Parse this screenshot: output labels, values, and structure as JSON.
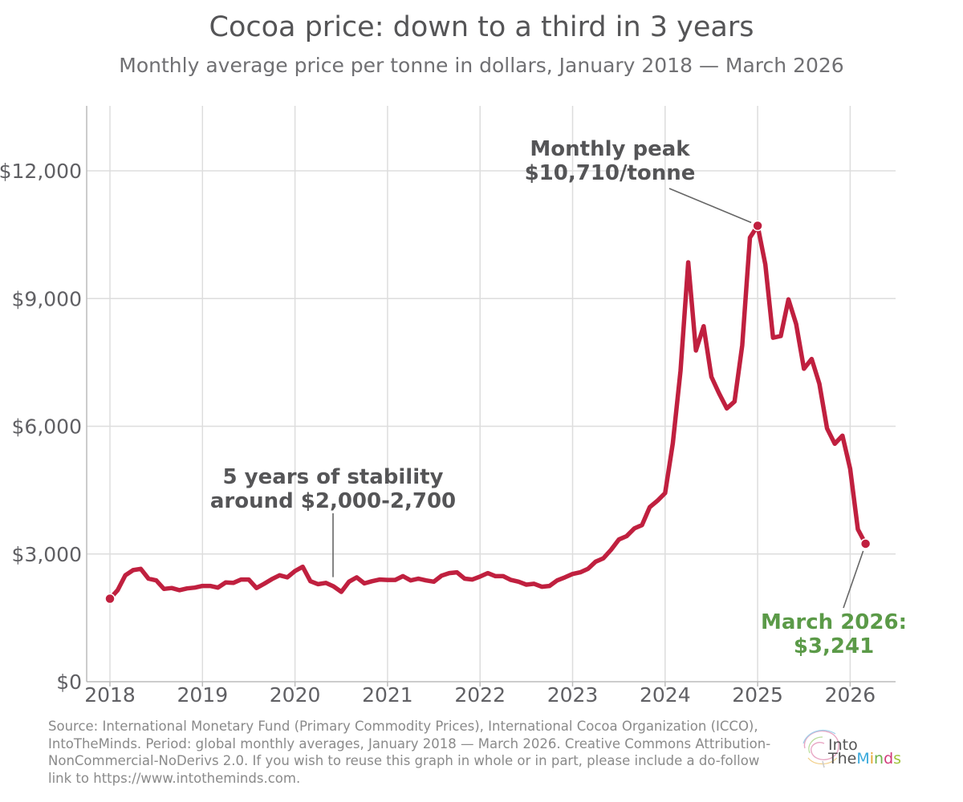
{
  "header": {
    "title": "Cocoa price: down to a third in 3 years",
    "subtitle": "Monthly average price per tonne in dollars, January 2018 — March 2026"
  },
  "chart_data": {
    "type": "line",
    "title": "Cocoa price: down to a third in 3 years",
    "subtitle": "Monthly average price per tonne in dollars, January 2018 — March 2026",
    "xlabel": "",
    "ylabel": "",
    "x_ticks": [
      "2018",
      "2019",
      "2020",
      "2021",
      "2022",
      "2023",
      "2024",
      "2025",
      "2026"
    ],
    "y_ticks": [
      0,
      3000,
      6000,
      9000,
      12000
    ],
    "y_tick_labels": [
      "$0",
      "$3,000",
      "$6,000",
      "$9,000",
      "$12,000"
    ],
    "xlim": [
      "2017-10",
      "2026-07"
    ],
    "ylim": [
      0,
      13500
    ],
    "grid": true,
    "line_color": "#c0203f",
    "series": [
      {
        "x_start": "2018-01",
        "frequency": "monthly",
        "values": [
          1950,
          2150,
          2500,
          2620,
          2650,
          2420,
          2380,
          2180,
          2200,
          2150,
          2190,
          2210,
          2250,
          2250,
          2210,
          2330,
          2320,
          2400,
          2400,
          2200,
          2300,
          2410,
          2500,
          2450,
          2600,
          2700,
          2360,
          2290,
          2320,
          2240,
          2110,
          2350,
          2450,
          2310,
          2360,
          2400,
          2390,
          2390,
          2480,
          2380,
          2420,
          2380,
          2350,
          2490,
          2550,
          2570,
          2420,
          2400,
          2470,
          2550,
          2480,
          2480,
          2390,
          2350,
          2280,
          2300,
          2230,
          2250,
          2380,
          2450,
          2530,
          2570,
          2650,
          2820,
          2900,
          3100,
          3340,
          3420,
          3600,
          3680,
          4100,
          4250,
          4430,
          5600,
          7300,
          9850,
          7780,
          8350,
          7160,
          6770,
          6420,
          6580,
          7900,
          10430,
          10710,
          9800,
          8080,
          8120,
          8980,
          8400,
          7350,
          7580,
          7000,
          5950,
          5590,
          5780,
          5000,
          3580,
          3241
        ]
      }
    ],
    "highlighted_points": [
      {
        "x": "2018-01",
        "y": 1950
      },
      {
        "x": "2025-01",
        "y": 10710
      },
      {
        "x": "2026-03",
        "y": 3241
      }
    ],
    "annotations": [
      {
        "lines": [
          "Monthly peak",
          "$10,710/tonne"
        ],
        "target_x": "2025-01",
        "target_y": 10710,
        "color": "#555557"
      },
      {
        "lines": [
          "5 years of stability",
          "around $2,000-2,700"
        ],
        "target_x": "2020-06",
        "target_y": 2550,
        "color": "#555557"
      },
      {
        "lines": [
          "March 2026:",
          "$3,241"
        ],
        "target_x": "2026-03",
        "target_y": 3241,
        "color": "#5b9a48"
      }
    ]
  },
  "footer": {
    "source": "Source: International Monetary Fund (Primary Commodity Prices), International Cocoa Organization (ICCO), IntoTheMinds. Period: global monthly averages, January 2018 — March 2026. Creative Commons Attribution-NonCommercial-NoDerivs 2.0. If you wish to reuse this graph in whole or in part, please include a do-follow link to https://www.intotheminds.com."
  },
  "logo": {
    "line1": "Into",
    "line2_prefix": "The",
    "line2_letters": [
      {
        "char": "M",
        "color": "#39a9dc"
      },
      {
        "char": "i",
        "color": "#e5a52b"
      },
      {
        "char": "n",
        "color": "#6db34a"
      },
      {
        "char": "d",
        "color": "#d1397a"
      },
      {
        "char": "s",
        "color": "#a0c43a"
      }
    ],
    "icon": "brain-swirl-icon"
  }
}
